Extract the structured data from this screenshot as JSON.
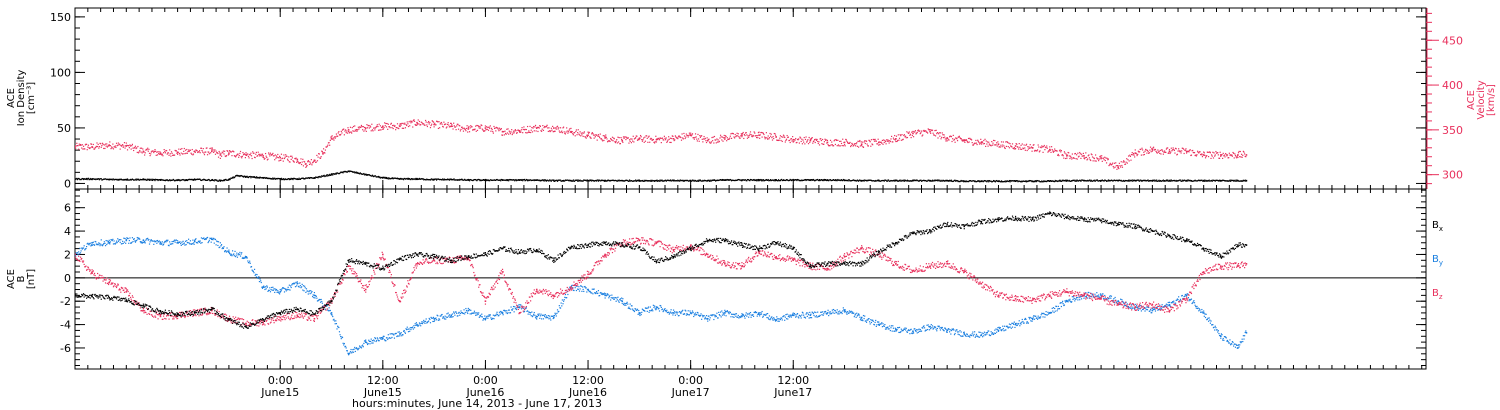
{
  "chart_data": [
    {
      "type": "scatter",
      "panel": "top",
      "ylabel_lines": [
        "ACE",
        "Ion Density"
      ],
      "ylabel_unit": "[cm⁻³]",
      "y2label_lines": [
        "ACE",
        "Velocity"
      ],
      "y2label_unit": "[km/s]",
      "ylim": [
        -5,
        158
      ],
      "y_ticks": [
        0,
        50,
        100,
        150
      ],
      "y2lim": [
        284,
        486
      ],
      "y2_ticks": [
        300,
        350,
        400,
        450
      ],
      "colors": {
        "density": "#000000",
        "velocity": "#e8305c"
      },
      "series": [
        {
          "name": "Ion Density",
          "axis": "left",
          "x": [
            0,
            2,
            4,
            6,
            8,
            10,
            12,
            13,
            14,
            16,
            17,
            18,
            19,
            20,
            22,
            24,
            26,
            28,
            30,
            32,
            34,
            36,
            38,
            40,
            42,
            44,
            46,
            48,
            50,
            52,
            54,
            56,
            58,
            60,
            62,
            64,
            66,
            68,
            70,
            72,
            74,
            76,
            78,
            80,
            82,
            84,
            86,
            88,
            90,
            92,
            94,
            96,
            98,
            100,
            102,
            104,
            106,
            108,
            110,
            112,
            114,
            116,
            118,
            120,
            122,
            124,
            126,
            128,
            130,
            132,
            134,
            136,
            137
          ],
          "values": [
            4,
            4,
            3.5,
            3.5,
            3.5,
            3,
            3,
            3,
            3.5,
            3,
            2.5,
            3.5,
            7,
            6,
            5,
            4,
            4,
            5,
            8,
            11,
            8,
            5,
            4,
            4,
            3.5,
            3.5,
            3,
            3,
            3,
            3,
            3,
            2.5,
            2.5,
            2.5,
            2.5,
            2.5,
            2.5,
            2.5,
            2.5,
            2.5,
            2.5,
            3,
            3,
            3,
            3,
            3,
            3,
            3,
            3,
            2.5,
            2.5,
            2.5,
            2.5,
            2.5,
            2.5,
            2,
            2,
            2,
            2,
            2,
            2,
            2.5,
            2.5,
            2.5,
            2.5,
            2.5,
            2.5,
            2.5,
            2.5,
            2.5,
            2.5,
            2.5,
            2.5
          ]
        },
        {
          "name": "Velocity",
          "axis": "right",
          "x": [
            0,
            2,
            4,
            6,
            8,
            10,
            12,
            14,
            16,
            17,
            18,
            20,
            22,
            24,
            26,
            27,
            28,
            29,
            30,
            32,
            34,
            36,
            38,
            40,
            42,
            44,
            46,
            48,
            50,
            52,
            54,
            56,
            58,
            60,
            62,
            64,
            66,
            68,
            70,
            72,
            74,
            76,
            78,
            80,
            82,
            84,
            86,
            88,
            90,
            92,
            94,
            96,
            98,
            100,
            102,
            104,
            106,
            108,
            110,
            112,
            114,
            116,
            118,
            120,
            122,
            124,
            126,
            128,
            130,
            132,
            134,
            136,
            137
          ],
          "values": [
            331,
            331,
            333,
            332,
            326,
            324,
            325,
            326,
            326,
            322,
            324,
            322,
            321,
            319,
            317,
            312,
            316,
            324,
            340,
            350,
            352,
            354,
            354,
            358,
            356,
            354,
            351,
            352,
            348,
            349,
            352,
            352,
            348,
            344,
            341,
            338,
            340,
            339,
            340,
            344,
            338,
            341,
            344,
            344,
            342,
            339,
            338,
            336,
            336,
            334,
            336,
            340,
            346,
            348,
            341,
            338,
            336,
            334,
            332,
            330,
            328,
            321,
            321,
            318,
            308,
            324,
            328,
            326,
            326,
            322,
            322,
            322,
            322
          ]
        }
      ]
    },
    {
      "type": "scatter",
      "panel": "bottom",
      "ylabel_lines": [
        "ACE",
        "B"
      ],
      "ylabel_unit": "[nT]",
      "ylim": [
        -7.8,
        7.6
      ],
      "y_ticks": [
        -6,
        -4,
        -2,
        0,
        2,
        4,
        6
      ],
      "zero_line": true,
      "colors": {
        "Bx": "#000000",
        "By": "#1a7fe0",
        "Bz": "#e8305c"
      },
      "series": [
        {
          "name": "Bx",
          "x": [
            0,
            2,
            4,
            6,
            8,
            10,
            12,
            14,
            16,
            18,
            20,
            22,
            24,
            26,
            28,
            30,
            32,
            34,
            36,
            38,
            40,
            42,
            44,
            46,
            48,
            50,
            52,
            54,
            56,
            58,
            60,
            62,
            64,
            66,
            68,
            70,
            72,
            74,
            76,
            78,
            80,
            82,
            84,
            86,
            88,
            90,
            92,
            94,
            96,
            98,
            100,
            102,
            104,
            106,
            108,
            110,
            112,
            114,
            116,
            118,
            120,
            122,
            124,
            126,
            128,
            130,
            132,
            134,
            136,
            137
          ],
          "values": [
            -1.5,
            -1.6,
            -1.7,
            -1.9,
            -2.4,
            -2.9,
            -3.1,
            -3.0,
            -2.7,
            -3.6,
            -4.2,
            -3.6,
            -3.0,
            -2.7,
            -3.1,
            -2.0,
            1.5,
            1.2,
            0.8,
            1.6,
            2.0,
            1.8,
            1.5,
            1.8,
            2.0,
            2.5,
            2.2,
            2.4,
            1.5,
            2.6,
            2.8,
            3.0,
            2.8,
            2.6,
            1.4,
            1.8,
            2.5,
            3.2,
            3.2,
            2.8,
            2.5,
            3.0,
            2.5,
            1.0,
            1.2,
            1.2,
            1.2,
            2.2,
            3.0,
            3.8,
            4.0,
            4.6,
            4.4,
            4.8,
            5.0,
            5.1,
            5.0,
            5.5,
            5.2,
            5.0,
            4.9,
            4.6,
            4.4,
            4.0,
            3.6,
            3.2,
            2.5,
            1.8,
            2.8,
            2.8
          ]
        },
        {
          "name": "By",
          "x": [
            0,
            2,
            4,
            6,
            8,
            10,
            12,
            14,
            16,
            18,
            20,
            22,
            24,
            26,
            28,
            30,
            32,
            34,
            36,
            38,
            40,
            42,
            44,
            46,
            48,
            50,
            52,
            54,
            56,
            58,
            60,
            62,
            64,
            66,
            68,
            70,
            72,
            74,
            76,
            78,
            80,
            82,
            84,
            86,
            88,
            90,
            92,
            94,
            96,
            98,
            100,
            102,
            104,
            106,
            108,
            110,
            112,
            114,
            116,
            118,
            120,
            122,
            124,
            126,
            128,
            130,
            132,
            134,
            136,
            137
          ],
          "values": [
            2.0,
            3.0,
            3.0,
            3.2,
            3.2,
            3.0,
            3.0,
            3.1,
            3.3,
            2.2,
            1.8,
            -0.8,
            -1.2,
            -0.5,
            -1.5,
            -3.0,
            -6.5,
            -5.5,
            -5.2,
            -4.8,
            -4.0,
            -3.5,
            -3.2,
            -2.8,
            -3.5,
            -3.0,
            -2.5,
            -3.3,
            -3.4,
            -0.8,
            -1.0,
            -1.5,
            -2.0,
            -3.0,
            -2.5,
            -3.0,
            -3.0,
            -3.5,
            -3.0,
            -3.3,
            -3.0,
            -3.6,
            -3.2,
            -3.2,
            -3.0,
            -2.8,
            -3.4,
            -4.0,
            -4.4,
            -4.6,
            -4.2,
            -4.5,
            -4.8,
            -4.9,
            -4.5,
            -4.0,
            -3.5,
            -3.0,
            -2.0,
            -1.5,
            -1.5,
            -2.0,
            -2.5,
            -2.8,
            -2.3,
            -1.5,
            -3.0,
            -5.0,
            -6.0,
            -4.7
          ]
        },
        {
          "name": "Bz",
          "x": [
            0,
            2,
            4,
            6,
            8,
            10,
            12,
            14,
            16,
            18,
            20,
            22,
            24,
            26,
            28,
            30,
            32,
            34,
            36,
            38,
            40,
            42,
            44,
            46,
            48,
            50,
            52,
            54,
            56,
            58,
            60,
            62,
            64,
            66,
            68,
            70,
            72,
            74,
            76,
            78,
            80,
            82,
            84,
            86,
            88,
            90,
            92,
            94,
            96,
            98,
            100,
            102,
            104,
            106,
            108,
            110,
            112,
            114,
            116,
            118,
            120,
            122,
            124,
            126,
            128,
            130,
            132,
            134,
            136,
            137
          ],
          "values": [
            2.0,
            0.4,
            -0.4,
            -1.2,
            -2.8,
            -3.3,
            -3.2,
            -3.0,
            -2.8,
            -3.5,
            -3.9,
            -3.8,
            -3.4,
            -3.2,
            -3.5,
            -2.0,
            1.0,
            -1.0,
            2.0,
            -2.0,
            1.2,
            1.5,
            1.5,
            1.7,
            -2.0,
            0.5,
            -3.0,
            -1.0,
            -1.5,
            -0.8,
            0.3,
            2.0,
            3.0,
            3.2,
            3.0,
            2.4,
            2.7,
            2.0,
            1.2,
            1.0,
            2.2,
            1.8,
            1.5,
            1.0,
            0.8,
            1.8,
            2.5,
            2.0,
            1.2,
            0.6,
            1.0,
            1.2,
            0.5,
            -0.5,
            -1.5,
            -1.8,
            -1.9,
            -1.5,
            -1.2,
            -1.5,
            -1.8,
            -2.3,
            -2.5,
            -2.3,
            -2.8,
            -1.8,
            0.5,
            1.0,
            1.0,
            1.2
          ]
        }
      ],
      "legend": [
        {
          "base": "B",
          "sub": "x",
          "color": "#000000"
        },
        {
          "base": "B",
          "sub": "y",
          "color": "#1a7fe0"
        },
        {
          "base": "B",
          "sub": "z",
          "color": "#e8305c"
        }
      ]
    }
  ],
  "x_axis": {
    "range_hours": [
      0,
      158
    ],
    "major_ticks": [
      {
        "at": 24,
        "time": "0:00",
        "day": "June15"
      },
      {
        "at": 36,
        "time": "12:00",
        "day": "June15"
      },
      {
        "at": 48,
        "time": "0:00",
        "day": "June16"
      },
      {
        "at": 60,
        "time": "12:00",
        "day": "June16"
      },
      {
        "at": 72,
        "time": "0:00",
        "day": "June17"
      },
      {
        "at": 84,
        "time": "12:00",
        "day": "June17"
      }
    ],
    "minor_step_hours": 1.5,
    "title": "hours:minutes, June 14, 2013 - June 17, 2013"
  }
}
